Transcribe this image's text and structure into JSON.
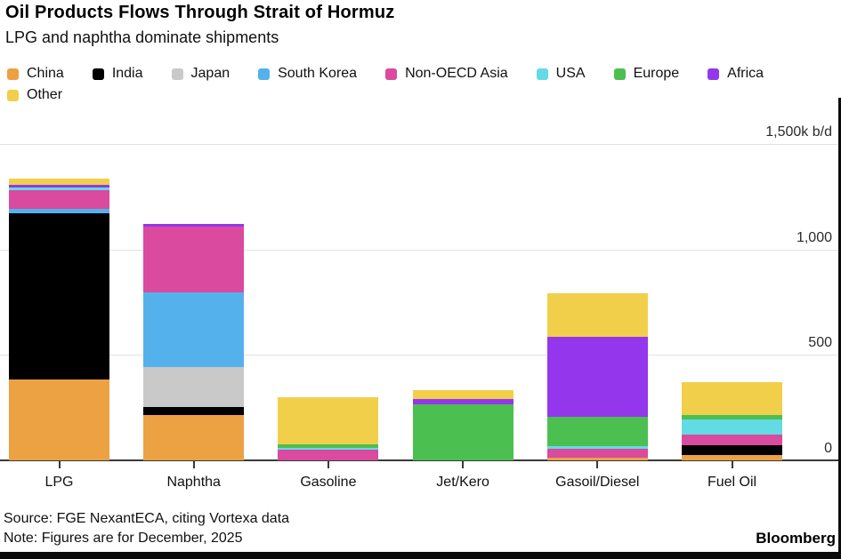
{
  "header": {
    "title": "Oil Products Flows Through Strait of Hormuz",
    "subtitle": "LPG and naphtha dominate shipments"
  },
  "chart_data": {
    "type": "bar",
    "subtype": "stacked-vertical",
    "title": "Oil Products Flows Through Strait of Hormuz",
    "subtitle": "LPG and naphtha dominate shipments",
    "unit": "k b/d",
    "categories": [
      "LPG",
      "Naphtha",
      "Gasoline",
      "Jet/Kero",
      "Gasoil/Diesel",
      "Fuel Oil"
    ],
    "series": [
      {
        "name": "China",
        "color": "#eca143",
        "values": [
          385,
          215,
          0,
          0,
          11,
          25
        ]
      },
      {
        "name": "India",
        "color": "#000000",
        "values": [
          785,
          38,
          0,
          0,
          0,
          47
        ]
      },
      {
        "name": "Japan",
        "color": "#c9c9c9",
        "values": [
          0,
          190,
          0,
          0,
          0,
          0
        ]
      },
      {
        "name": "South Korea",
        "color": "#55b1ec",
        "values": [
          22,
          353,
          0,
          0,
          0,
          0
        ]
      },
      {
        "name": "Non-OECD Asia",
        "color": "#da4a9e",
        "values": [
          90,
          313,
          50,
          0,
          42,
          50
        ]
      },
      {
        "name": "USA",
        "color": "#62dbe4",
        "values": [
          10,
          0,
          8,
          0,
          14,
          73
        ]
      },
      {
        "name": "Europe",
        "color": "#4cbf51",
        "values": [
          0,
          0,
          17,
          265,
          140,
          21
        ]
      },
      {
        "name": "Africa",
        "color": "#9437ec",
        "values": [
          13,
          10,
          0,
          24,
          380,
          0
        ]
      },
      {
        "name": "Other",
        "color": "#f2cf4b",
        "values": [
          30,
          0,
          225,
          42,
          207,
          155
        ]
      }
    ],
    "totals": [
      1335,
      1119,
      300,
      331,
      794,
      371
    ],
    "ylim": [
      0,
      1500
    ],
    "y_ticks": [
      {
        "value": 0,
        "label": "0"
      },
      {
        "value": 500,
        "label": "500"
      },
      {
        "value": 1000,
        "label": "1,000"
      },
      {
        "value": 1500,
        "label": "1,500k b/d"
      }
    ],
    "grid": true,
    "legend_position": "top"
  },
  "footer": {
    "source": "Source: FGE NexantECA, citing Vortexa data",
    "note": "Note: Figures are for December, 2025",
    "brand": "Bloomberg"
  }
}
